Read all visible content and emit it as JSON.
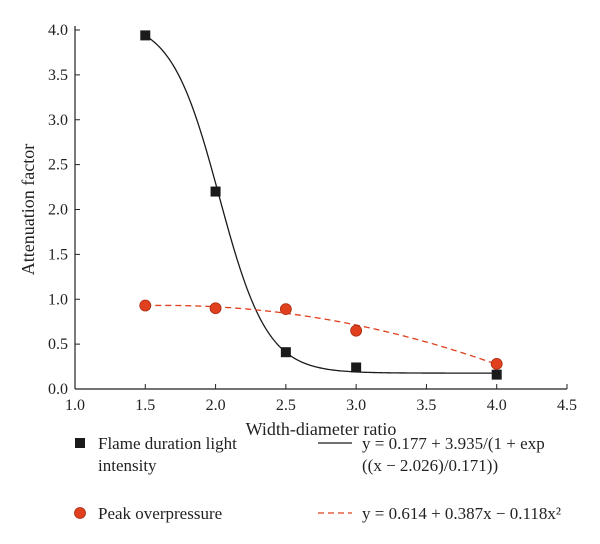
{
  "chart_data": {
    "type": "scatter",
    "xlabel": "Width-diameter ratio",
    "ylabel": "Attenuation factor",
    "xlim": [
      1.0,
      4.5
    ],
    "ylim": [
      0.0,
      4.0
    ],
    "x_ticks": [
      "1.0",
      "1.5",
      "2.0",
      "2.5",
      "3.0",
      "3.5",
      "4.0",
      "4.5"
    ],
    "y_ticks": [
      "0.0",
      "0.5",
      "1.0",
      "1.5",
      "2.0",
      "2.5",
      "3.0",
      "3.5",
      "4.0"
    ],
    "grid": false,
    "legend_position": "bottom",
    "series": [
      {
        "name": "Flame duration light intensity",
        "name_lines": [
          "Flame duration light",
          "intensity"
        ],
        "marker": "square",
        "color": "#1a1a1a",
        "x": [
          1.5,
          2.0,
          2.5,
          3.0,
          4.0
        ],
        "y": [
          3.94,
          2.2,
          0.41,
          0.24,
          0.16
        ],
        "fit": {
          "kind": "sigmoid",
          "params": {
            "a": 0.177,
            "b": 3.935,
            "c": 2.026,
            "d": 0.171
          },
          "style": "solid",
          "equation_lines": [
            "y = 0.177 + 3.935/(1 + exp",
            "((x − 2.026)/0.171))"
          ]
        }
      },
      {
        "name": "Peak overpressure",
        "name_lines": [
          "Peak overpressure"
        ],
        "marker": "circle",
        "color": "#e0401e",
        "x": [
          1.5,
          2.0,
          2.5,
          3.0,
          4.0
        ],
        "y": [
          0.93,
          0.9,
          0.89,
          0.65,
          0.28
        ],
        "fit": {
          "kind": "quadratic",
          "params": {
            "c0": 0.614,
            "c1": 0.387,
            "c2": -0.118
          },
          "style": "dashed",
          "equation_lines": [
            "y = 0.614 + 0.387x − 0.118x²"
          ]
        }
      }
    ]
  }
}
